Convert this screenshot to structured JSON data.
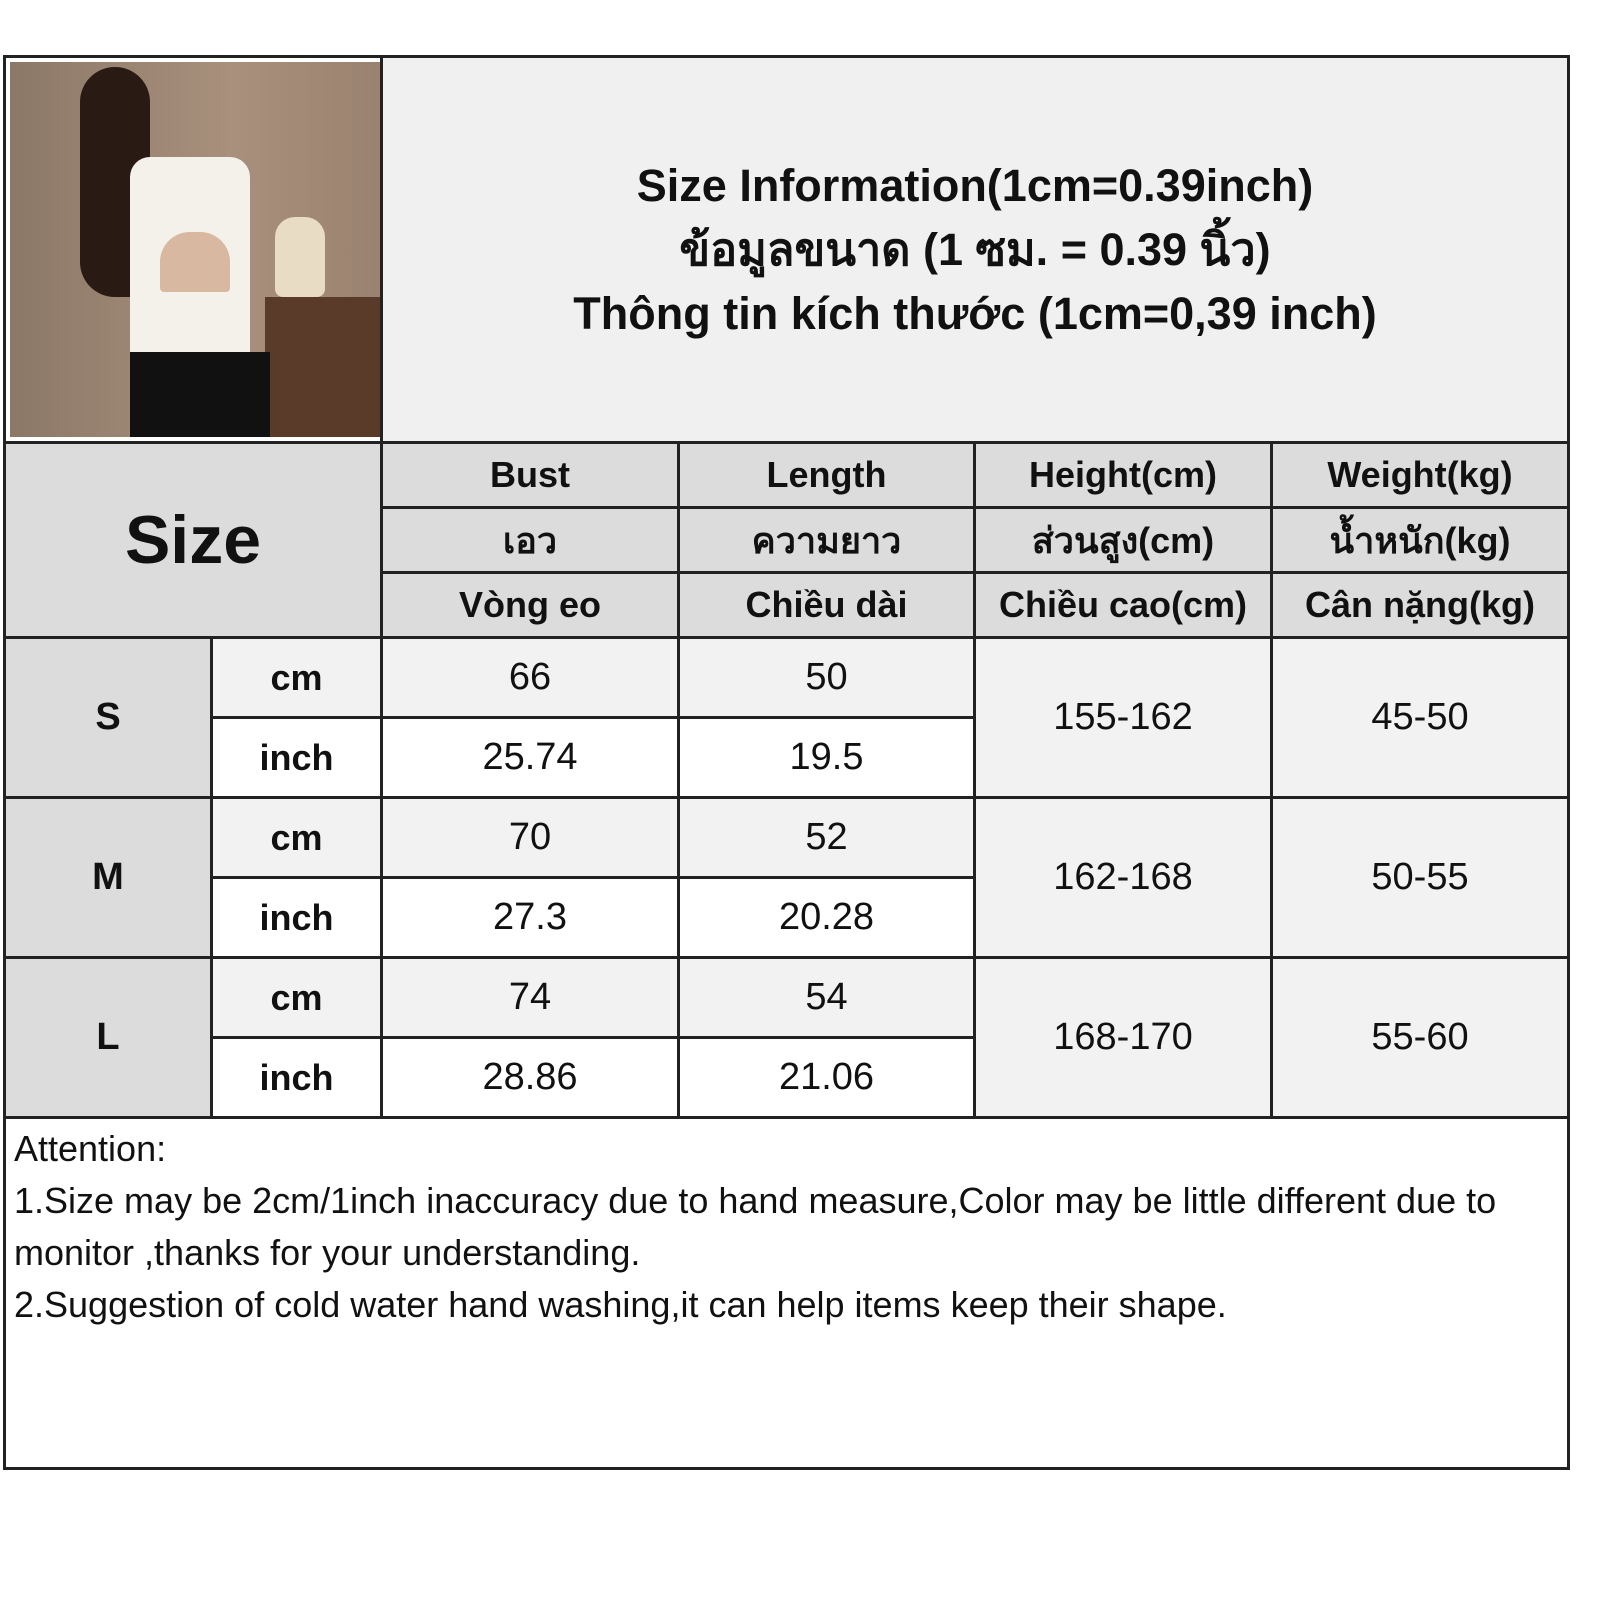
{
  "title": {
    "en": "Size Information(1cm=0.39inch)",
    "th": "ข้อมูลขนาด (1 ซม. = 0.39 นิ้ว)",
    "vi": "Thông tin kích thước (1cm=0,39 inch)"
  },
  "size_label": "Size",
  "columns": [
    {
      "en": "Bust",
      "th": "เอว",
      "vi": "Vòng eo"
    },
    {
      "en": "Length",
      "th": "ความยาว",
      "vi": "Chiều dài"
    },
    {
      "en": "Height(cm)",
      "th": "ส่วนสูง(cm)",
      "vi": "Chiều cao(cm)"
    },
    {
      "en": "Weight(kg)",
      "th": "น้ำหนัก(kg)",
      "vi": "Cân nặng(kg)"
    }
  ],
  "units": {
    "cm": "cm",
    "inch": "inch"
  },
  "sizes": [
    {
      "size": "S",
      "bust_cm": "66",
      "length_cm": "50",
      "bust_inch": "25.74",
      "length_inch": "19.5",
      "height": "155-162",
      "weight": "45-50"
    },
    {
      "size": "M",
      "bust_cm": "70",
      "length_cm": "52",
      "bust_inch": "27.3",
      "length_inch": "20.28",
      "height": "162-168",
      "weight": "50-55"
    },
    {
      "size": "L",
      "bust_cm": "74",
      "length_cm": "54",
      "bust_inch": "28.86",
      "length_inch": "21.06",
      "height": "168-170",
      "weight": "55-60"
    }
  ],
  "notes": {
    "heading": "Attention:",
    "line1": "1.Size may be 2cm/1inch inaccuracy due to hand measure,Color may be little different due to monitor ,thanks for your understanding.",
    "line2": "2.Suggestion of cold water hand washing,it can help items keep their shape."
  }
}
